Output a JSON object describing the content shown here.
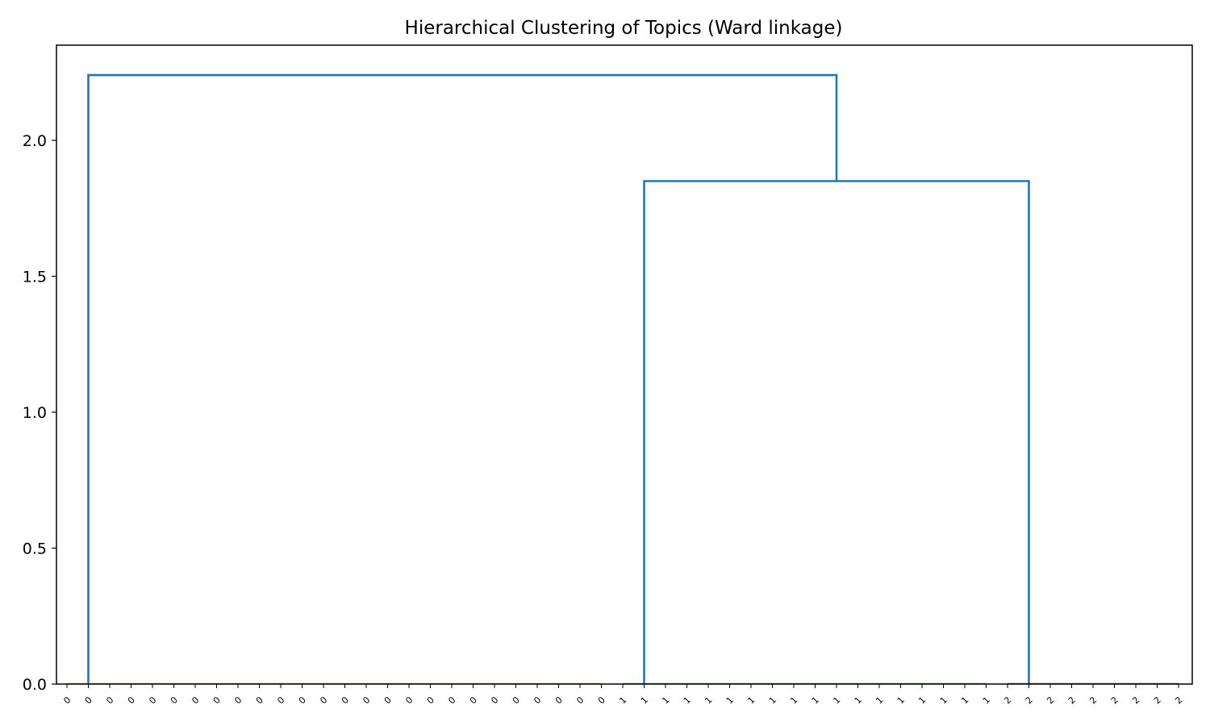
{
  "chart_data": {
    "type": "dendrogram",
    "title": "Hierarchical Clustering of Topics (Ward linkage)",
    "xlabel": "",
    "ylabel": "",
    "ylim": [
      0,
      2.35
    ],
    "yticks": [
      0.0,
      0.5,
      1.0,
      1.5,
      2.0
    ],
    "ytick_labels": [
      "0.0",
      "0.5",
      "1.0",
      "1.5",
      "2.0"
    ],
    "grid": false,
    "legend": "none",
    "leaf_labels": [
      "0",
      "0",
      "0",
      "0",
      "0",
      "0",
      "0",
      "0",
      "0",
      "0",
      "0",
      "0",
      "0",
      "0",
      "0",
      "0",
      "0",
      "0",
      "0",
      "0",
      "0",
      "0",
      "0",
      "0",
      "0",
      "0",
      "1",
      "1",
      "1",
      "1",
      "1",
      "1",
      "1",
      "1",
      "1",
      "1",
      "1",
      "1",
      "1",
      "1",
      "1",
      "1",
      "1",
      "1",
      "2",
      "2",
      "2",
      "2",
      "2",
      "2",
      "2",
      "2",
      "2"
    ],
    "cluster_colors": {
      "0": "#ff7f0e",
      "1": "#2ca02c",
      "2": "#d62728"
    },
    "link_color": "#1f77b4",
    "merges": [
      {
        "left": [
          0,
          25
        ],
        "right": [
          26,
          52
        ],
        "height": 2.24,
        "left_center_leaf": 1,
        "right_center_leaf": 36.0
      },
      {
        "left": [
          26,
          43
        ],
        "right": [
          44,
          52
        ],
        "height": 1.85,
        "left_center_leaf": 27,
        "right_center_leaf": 45
      }
    ]
  }
}
